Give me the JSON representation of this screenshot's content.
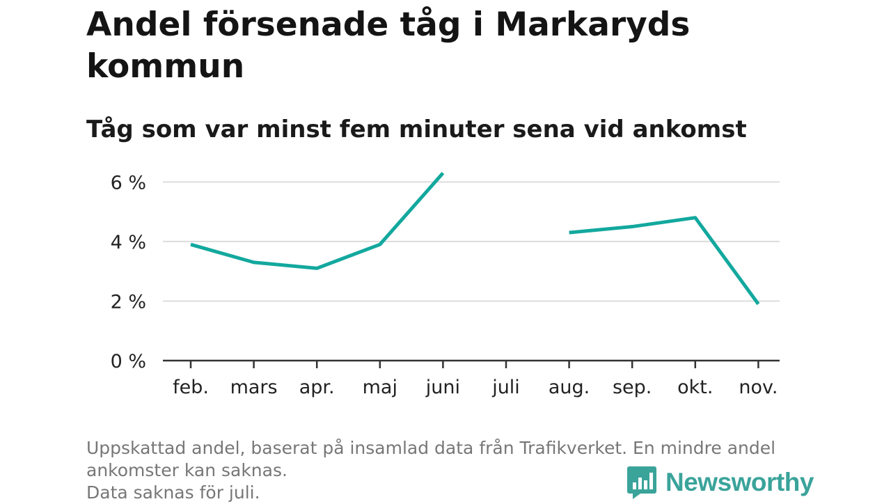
{
  "title": "Andel försenade tåg i Markaryds kommun",
  "subtitle": "Tåg som var minst fem minuter sena vid ankomst",
  "chart_data": {
    "type": "line",
    "categories": [
      "feb.",
      "mars",
      "apr.",
      "maj",
      "juni",
      "juli",
      "aug.",
      "sep.",
      "okt.",
      "nov."
    ],
    "series": [
      {
        "values": [
          3.9,
          3.3,
          3.1,
          3.9,
          6.3,
          null,
          4.3,
          4.5,
          4.8,
          1.9
        ]
      }
    ],
    "y_ticks": [
      0,
      2,
      4,
      6
    ],
    "y_tick_suffix": " %",
    "ylim": [
      0,
      6.5
    ],
    "grid": true,
    "colors": {
      "line": "#13a89e",
      "grid": "#dcdcdc",
      "axis": "#333333"
    }
  },
  "footnote": {
    "lines": [
      "Uppskattad andel, baserat på insamlad data från Trafikverket. En mindre andel",
      "ankomster kan saknas.",
      "Data saknas för juli."
    ]
  },
  "brand": {
    "name": "Newsworthy",
    "icon": "newsworthy-logo-icon",
    "color": "#3aa39a"
  }
}
